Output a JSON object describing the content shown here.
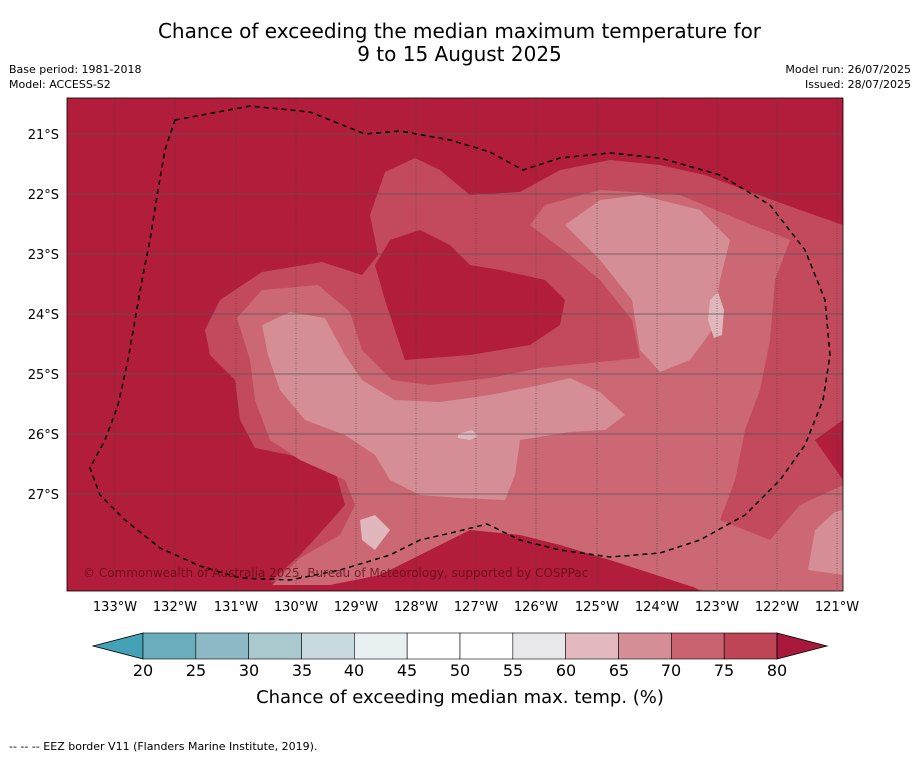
{
  "header": {
    "title_line1": "Chance of exceeding the median maximum temperature for",
    "title_line2": "9 to 15 August 2025",
    "base_period": "Base period: 1981-2018",
    "model": "Model: ACCESS-S2",
    "model_run": "Model run: 26/07/2025",
    "issued": "Issued: 28/07/2025"
  },
  "map": {
    "lat_labels": [
      "21°S",
      "22°S",
      "23°S",
      "24°S",
      "25°S",
      "26°S",
      "27°S"
    ],
    "lon_labels": [
      "133°W",
      "132°W",
      "131°W",
      "130°W",
      "129°W",
      "128°W",
      "127°W",
      "126°W",
      "125°W",
      "124°W",
      "123°W",
      "122°W",
      "121°W"
    ],
    "copyright": "© Commonwealth of Australia 2025, Bureau of Meteorology, supported by COSPPac",
    "level_colors": {
      "above_80": "#b11d3a",
      "75_80": "#c24a5c",
      "70_75": "#cb6873",
      "65_70": "#d58e96",
      "60_65": "#e0b7bd"
    }
  },
  "colorbar": {
    "ticks": [
      "20",
      "25",
      "30",
      "35",
      "40",
      "45",
      "50",
      "55",
      "60",
      "65",
      "70",
      "75",
      "80"
    ],
    "colors": [
      "#6aaebe",
      "#8dbac6",
      "#a9c9cf",
      "#c8dade",
      "#e9f0f2",
      "#ffffff",
      "#ffffff",
      "#e8e8ea",
      "#e3b9bf",
      "#d58e96",
      "#c8636f",
      "#bd4556"
    ],
    "low_extend_color": "#45a1b5",
    "high_extend_color": "#a8183a",
    "label": "Chance of exceeding median max. temp. (%)"
  },
  "legend_note": "--  --  -- EEZ border V11 (Flanders Marine Institute, 2019)."
}
